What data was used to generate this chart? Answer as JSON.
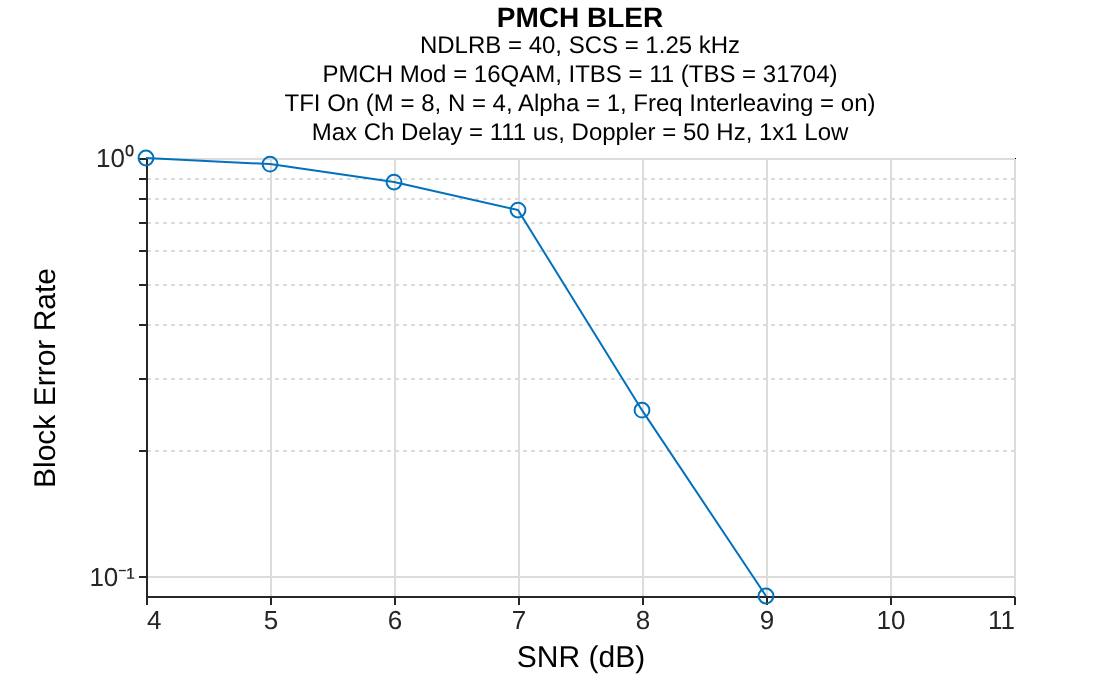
{
  "chart_data": {
    "type": "line",
    "title": "PMCH BLER",
    "subtitle": "NDLRB = 40, SCS = 1.25 kHz\nPMCH Mod = 16QAM, ITBS = 11 (TBS = 31704)\nTFI On (M = 8, N = 4, Alpha = 1, Freq Interleaving = on)\nMax Ch Delay = 111 us, Doppler = 50 Hz, 1x1 Low",
    "xlabel": "SNR (dB)",
    "ylabel": "Block Error Rate",
    "x": [
      4,
      5,
      6,
      7,
      8,
      9
    ],
    "series": [
      {
        "color": "#0072bd",
        "values": [
          1.0,
          0.967,
          0.876,
          0.751,
          0.25,
          0.09
        ]
      }
    ],
    "xlim": [
      4,
      11
    ],
    "xticks": [
      4,
      5,
      6,
      7,
      8,
      9,
      10,
      11
    ],
    "ylim": [
      0.09,
      1
    ],
    "yticks": [
      {
        "value": 0.1,
        "label": "10⁻¹"
      },
      {
        "value": 0.2,
        "label": null
      },
      {
        "value": 0.3,
        "label": null
      },
      {
        "value": 0.4,
        "label": null
      },
      {
        "value": 0.5,
        "label": null
      },
      {
        "value": 0.6,
        "label": null
      },
      {
        "value": 0.7,
        "label": null
      },
      {
        "value": 0.8,
        "label": null
      },
      {
        "value": 0.9,
        "label": null
      },
      {
        "value": 1,
        "label": "10⁰"
      }
    ],
    "log": "y",
    "grid": true,
    "marker": "circle",
    "line_style": "solid"
  }
}
